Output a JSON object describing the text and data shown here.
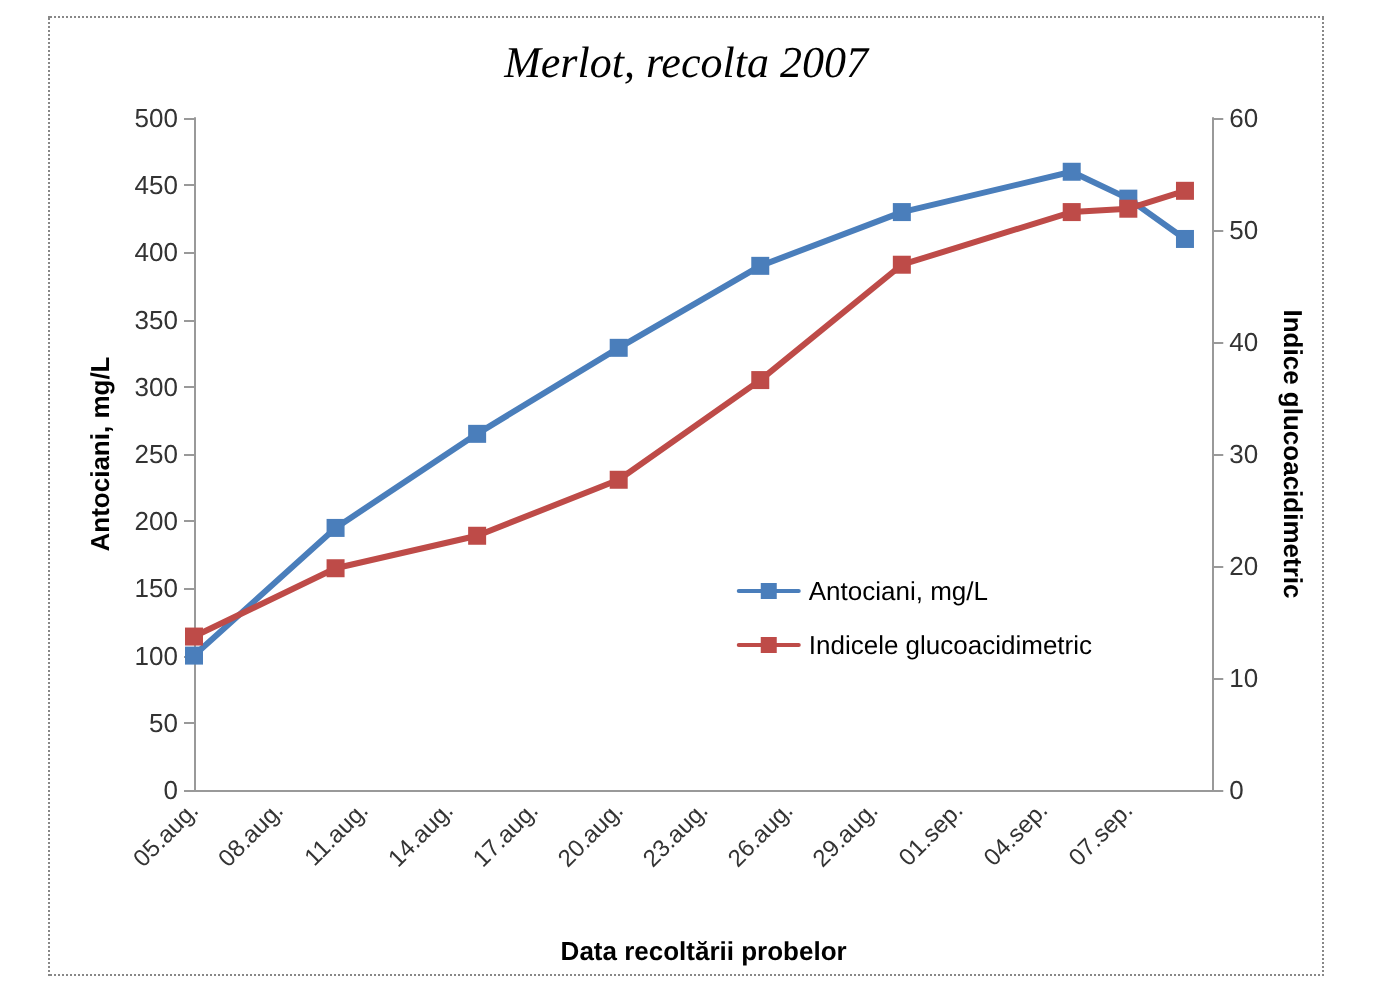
{
  "chart_data": {
    "type": "line",
    "title": "Merlot, recolta 2007",
    "xlabel": "Data recoltării probelor",
    "ylabel": "Antociani, mg/L",
    "y2label": "Indice glucoacidimetric",
    "x": [
      "2007-08-05",
      "2007-08-10",
      "2007-08-15",
      "2007-08-20",
      "2007-08-25",
      "2007-08-30",
      "2007-09-05",
      "2007-09-07",
      "2007-09-09"
    ],
    "series": [
      {
        "name": "Antociani, mg/L",
        "color": "#4a7ebb",
        "values": [
          100,
          195,
          265,
          329,
          390,
          430,
          460,
          440,
          410
        ]
      },
      {
        "name": "Indicele glucoacidimetric",
        "color": "#be4b48",
        "axis": "y2",
        "values": [
          13.7,
          19.8,
          22.7,
          27.7,
          36.6,
          46.9,
          51.6,
          51.9,
          53.5
        ]
      }
    ],
    "xlim": [
      "2007-08-05",
      "2007-09-10"
    ],
    "xticks": [
      {
        "value": "2007-08-05",
        "label": "05.aug."
      },
      {
        "value": "2007-08-08",
        "label": "08.aug."
      },
      {
        "value": "2007-08-11",
        "label": "11.aug."
      },
      {
        "value": "2007-08-14",
        "label": "14.aug."
      },
      {
        "value": "2007-08-17",
        "label": "17.aug."
      },
      {
        "value": "2007-08-20",
        "label": "20.aug."
      },
      {
        "value": "2007-08-23",
        "label": "23.aug."
      },
      {
        "value": "2007-08-26",
        "label": "26.aug."
      },
      {
        "value": "2007-08-29",
        "label": "29.aug."
      },
      {
        "value": "2007-09-01",
        "label": "01.sep."
      },
      {
        "value": "2007-09-04",
        "label": "04.sep."
      },
      {
        "value": "2007-09-07",
        "label": "07.sep."
      }
    ],
    "ylim": [
      0,
      500
    ],
    "yticks": [
      0,
      50,
      100,
      150,
      200,
      250,
      300,
      350,
      400,
      450,
      500
    ],
    "y2lim": [
      0,
      60
    ],
    "y2ticks": [
      0,
      10,
      20,
      30,
      40,
      50,
      60
    ],
    "grid": false,
    "legend": "right",
    "marker": "square",
    "line_style": "solid"
  }
}
